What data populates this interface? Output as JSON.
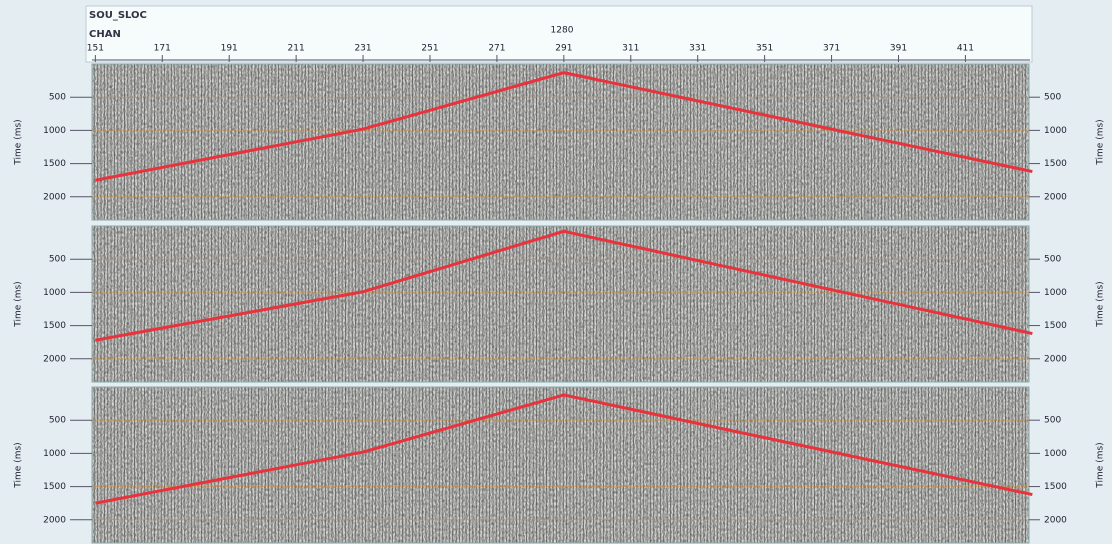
{
  "header": {
    "title": "SOU_SLOC",
    "subtitle": "CHAN",
    "source": "1280"
  },
  "channel_axis": {
    "xlim": [
      150,
      430
    ],
    "xticks": [
      151,
      171,
      191,
      211,
      231,
      251,
      271,
      291,
      311,
      331,
      351,
      371,
      391,
      411
    ]
  },
  "chart_data": [
    {
      "type": "line",
      "ylabel": "Time (ms)",
      "ylim": [
        0,
        2350
      ],
      "yticks": [
        500,
        1000,
        1500,
        2000
      ],
      "x": [
        151,
        231,
        291,
        431
      ],
      "values": [
        1750,
        980,
        130,
        1620
      ],
      "color": "#e8323c"
    },
    {
      "type": "line",
      "ylabel": "Time (ms)",
      "ylim": [
        0,
        2350
      ],
      "yticks": [
        500,
        1000,
        1500,
        2000
      ],
      "x": [
        151,
        231,
        291,
        431
      ],
      "values": [
        1720,
        990,
        80,
        1620
      ],
      "color": "#e8323c"
    },
    {
      "type": "line",
      "ylabel": "Time (ms)",
      "ylim": [
        0,
        2350
      ],
      "yticks": [
        500,
        1000,
        1500,
        2000
      ],
      "x": [
        151,
        231,
        291,
        431
      ],
      "values": [
        1750,
        980,
        120,
        1620
      ],
      "color": "#e8323c"
    }
  ]
}
